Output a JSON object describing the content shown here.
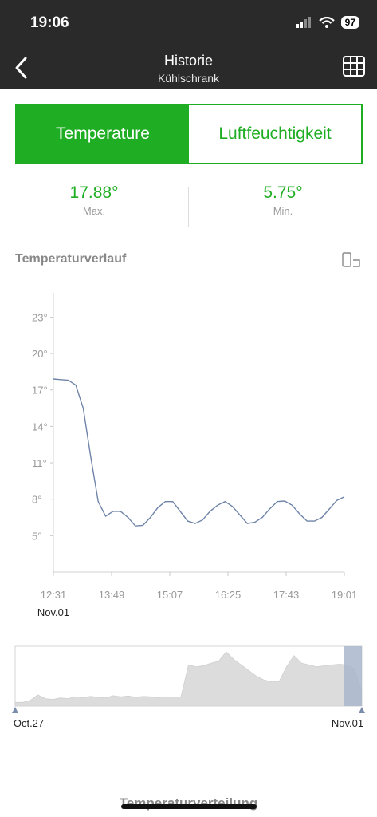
{
  "status_bar": {
    "time": "19:06",
    "battery": "97"
  },
  "nav": {
    "title": "Historie",
    "subtitle": "Kühlschrank"
  },
  "tabs": [
    {
      "label": "Temperature",
      "active": true
    },
    {
      "label": "Luftfeuchtigkeit",
      "active": false
    }
  ],
  "stats": {
    "max": {
      "value": "17.88°",
      "label": "Max."
    },
    "min": {
      "value": "5.75°",
      "label": "Min."
    }
  },
  "section_title": "Temperaturverlauf",
  "bottom_title": "Temperaturverteilung",
  "colors": {
    "accent": "#1fae23",
    "line": "#6f84a8",
    "range_fill": "#dcdcdc",
    "brush": "#a9b6cc"
  },
  "chart_data": [
    {
      "type": "line",
      "title": "",
      "ylabel": "",
      "xlabel": "",
      "ylim": [
        2,
        25
      ],
      "y_ticks": [
        "23°",
        "20°",
        "17°",
        "14°",
        "11°",
        "8°",
        "5°"
      ],
      "y_tick_values": [
        23,
        20,
        17,
        14,
        11,
        8,
        5
      ],
      "x_ticks": [
        "12:31",
        "13:49",
        "15:07",
        "16:25",
        "17:43",
        "19:01"
      ],
      "x_date_label": "Nov.01",
      "grid": false,
      "series": [
        {
          "values": [
            17.9,
            17.85,
            17.8,
            17.4,
            15.5,
            11.5,
            7.8,
            6.6,
            7.0,
            7.0,
            6.5,
            5.8,
            5.85,
            6.5,
            7.3,
            7.8,
            7.8,
            7.0,
            6.2,
            6.0,
            6.3,
            7.0,
            7.5,
            7.8,
            7.4,
            6.7,
            6.0,
            6.1,
            6.5,
            7.2,
            7.8,
            7.85,
            7.5,
            6.8,
            6.2,
            6.2,
            6.5,
            7.2,
            7.9,
            8.2
          ]
        }
      ]
    },
    {
      "type": "area",
      "title": "",
      "x_ticks": [
        "Oct.27",
        "Nov.01"
      ],
      "series": [
        {
          "values": [
            1,
            1,
            1.5,
            3,
            2,
            1.8,
            2.2,
            2.0,
            2.5,
            2.3,
            2.6,
            2.4,
            2.2,
            2.8,
            2.5,
            2.7,
            2.4,
            2.6,
            2.5,
            2.3,
            2.5,
            2.4,
            2.5,
            11,
            10.5,
            10.8,
            11.5,
            12,
            14.5,
            12.5,
            11,
            9.5,
            8,
            7,
            6.5,
            6.5,
            10.5,
            13.5,
            11.5,
            11,
            10.5,
            10.8,
            11,
            11.2,
            11,
            10,
            4
          ]
        }
      ],
      "selection": "last segment highlighted"
    }
  ]
}
